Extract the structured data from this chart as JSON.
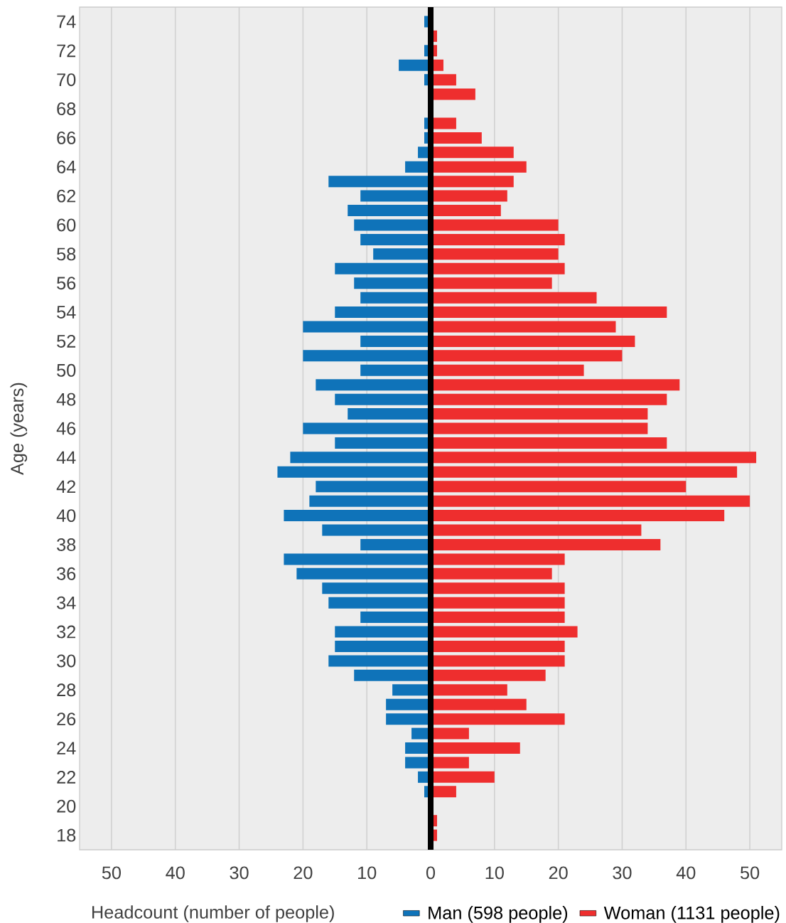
{
  "chart_data": {
    "type": "bar",
    "orientation": "horizontal",
    "xlabel": "Headcount (number of people)",
    "ylabel": "Age (years)",
    "categories": [
      "74",
      null,
      "72",
      null,
      "70",
      null,
      "68",
      null,
      "66",
      null,
      "64",
      null,
      "62",
      null,
      "60",
      null,
      "58",
      null,
      "56",
      null,
      "54",
      null,
      "52",
      null,
      "50",
      null,
      "48",
      null,
      "46",
      null,
      "44",
      null,
      "42",
      null,
      "40",
      null,
      "38",
      null,
      "36",
      null,
      "34",
      null,
      "32",
      null,
      "30",
      null,
      "28",
      null,
      "26",
      null,
      "24",
      null,
      "22",
      null,
      "20",
      null,
      "18"
    ],
    "series": [
      {
        "name": "Man (598 people)",
        "color": "#0f73b9",
        "values": [
          -1,
          0,
          -1,
          -5,
          -1,
          0,
          0,
          -1,
          -1,
          -2,
          -4,
          -16,
          -11,
          -13,
          -12,
          -11,
          -9,
          -15,
          -12,
          -11,
          -15,
          -20,
          -11,
          -20,
          -11,
          -18,
          -15,
          -13,
          -20,
          -15,
          -22,
          -24,
          -18,
          -19,
          -23,
          -17,
          -11,
          -23,
          -21,
          -17,
          -16,
          -11,
          -15,
          -15,
          -16,
          -12,
          -6,
          -7,
          -7,
          -3,
          -4,
          -4,
          -2,
          -1,
          0,
          0,
          0
        ]
      },
      {
        "name": "Woman (1131 people)",
        "color": "#ee2e2e",
        "values": [
          0,
          1,
          1,
          2,
          4,
          7,
          0,
          4,
          8,
          13,
          15,
          13,
          12,
          11,
          20,
          21,
          20,
          21,
          19,
          26,
          37,
          29,
          32,
          30,
          24,
          39,
          37,
          34,
          34,
          37,
          51,
          48,
          40,
          50,
          46,
          33,
          36,
          21,
          19,
          21,
          21,
          21,
          23,
          21,
          21,
          18,
          12,
          15,
          21,
          6,
          14,
          6,
          10,
          4,
          0,
          1,
          1
        ]
      }
    ],
    "xlim": [
      -55,
      55
    ],
    "xticks": [
      {
        "value": -50,
        "label": "50"
      },
      {
        "value": -40,
        "label": "40"
      },
      {
        "value": -30,
        "label": "30"
      },
      {
        "value": -20,
        "label": "20"
      },
      {
        "value": -10,
        "label": "10"
      },
      0,
      10,
      20,
      30,
      40,
      50
    ],
    "grid": "x",
    "legend": "bottom right",
    "stacked": true,
    "ref_lines": [
      {
        "axis": "x",
        "value": 0,
        "color": "#000000"
      }
    ]
  }
}
